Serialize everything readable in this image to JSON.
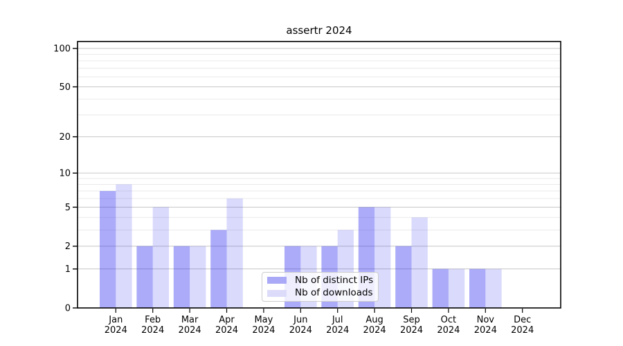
{
  "title": "assertr 2024",
  "legend": {
    "items": [
      {
        "label": "Nb of distinct IPs",
        "series": "ips"
      },
      {
        "label": "Nb of downloads",
        "series": "downloads"
      }
    ]
  },
  "chart_data": {
    "type": "bar",
    "title": "assertr 2024",
    "categories": [
      "Jan 2024",
      "Feb 2024",
      "Mar 2024",
      "Apr 2024",
      "May 2024",
      "Jun 2024",
      "Jul 2024",
      "Aug 2024",
      "Sep 2024",
      "Oct 2024",
      "Nov 2024",
      "Dec 2024"
    ],
    "series": [
      {
        "name": "Nb of distinct IPs",
        "values": [
          7,
          2,
          2,
          3,
          0,
          2,
          2,
          5,
          2,
          1,
          1,
          0
        ]
      },
      {
        "name": "Nb of downloads",
        "values": [
          8,
          5,
          2,
          6,
          0,
          2,
          3,
          5,
          4,
          1,
          1,
          0
        ]
      }
    ],
    "yscale": "log10(value+1)",
    "y_major_ticks": [
      0,
      1,
      2,
      5,
      10,
      20,
      50,
      100
    ],
    "y_minor_gridlines": [
      3,
      4,
      6,
      7,
      8,
      9,
      30,
      40,
      60,
      70,
      80,
      90
    ],
    "ylim": [
      0,
      113
    ],
    "xlabel": "",
    "ylabel": "",
    "grid": true,
    "legend_position": "lower center"
  },
  "colors": {
    "bar_base": "#1a1af0",
    "bar_alpha_ips": 0.37,
    "bar_alpha_downloads": 0.16,
    "swatch_ips": "#a9a9f7",
    "swatch_downloads": "#dcdcfa",
    "grid_major": "#c6c6c6",
    "grid_minor": "#eaeaea",
    "axis": "#000000",
    "text": "#000000",
    "legend_border": "#cccccc",
    "background": "#ffffff"
  }
}
